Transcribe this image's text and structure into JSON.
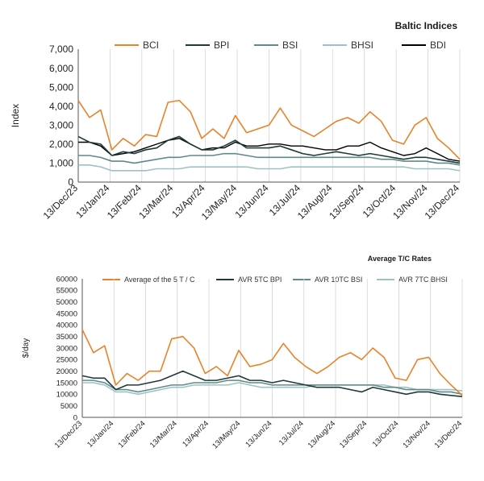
{
  "chart_data": [
    {
      "type": "line",
      "title": "Baltic Indices",
      "ylabel": "Index",
      "ylim": [
        0,
        7000
      ],
      "yticks": [
        "7,000",
        "6,000",
        "5,000",
        "4,000",
        "3,000",
        "2,000",
        "1,000",
        "0"
      ],
      "xticks": [
        "13/Dec/23",
        "13/Jan/24",
        "13/Feb/24",
        "13/Mar/24",
        "13/Apr/24",
        "13/May/24",
        "13/Jun/24",
        "13/Jul/24",
        "13/Aug/24",
        "13/Sep/24",
        "13/Oct/24",
        "13/Nov/24",
        "13/Dec/24"
      ],
      "grid": "vertical",
      "legend": "top",
      "series": [
        {
          "name": "BCI",
          "color": "#e8832a",
          "width": 1.6,
          "values": [
            4300,
            3400,
            3800,
            1700,
            2300,
            1900,
            2500,
            2400,
            4200,
            4300,
            3700,
            2300,
            2800,
            2300,
            3500,
            2600,
            2800,
            3000,
            3900,
            3000,
            2700,
            2400,
            2800,
            3200,
            3400,
            3100,
            3700,
            3200,
            2200,
            2000,
            3000,
            3400,
            2300,
            1800,
            1200
          ]
        },
        {
          "name": "BPI",
          "color": "#1f3a3a",
          "width": 1.6,
          "values": [
            2400,
            2100,
            2000,
            1400,
            1600,
            1500,
            1700,
            1800,
            2200,
            2400,
            2000,
            1700,
            1700,
            1900,
            2200,
            1800,
            1800,
            1800,
            1900,
            1700,
            1500,
            1400,
            1500,
            1600,
            1500,
            1400,
            1500,
            1400,
            1300,
            1200,
            1300,
            1300,
            1200,
            1100,
            1000
          ]
        },
        {
          "name": "BSI",
          "color": "#5e8a8a",
          "width": 1.6,
          "values": [
            1400,
            1400,
            1300,
            1100,
            1100,
            1000,
            1100,
            1200,
            1300,
            1300,
            1400,
            1400,
            1400,
            1500,
            1500,
            1400,
            1300,
            1300,
            1300,
            1300,
            1300,
            1300,
            1300,
            1300,
            1300,
            1300,
            1300,
            1200,
            1200,
            1100,
            1100,
            1100,
            1000,
            1000,
            900
          ]
        },
        {
          "name": "BHSI",
          "color": "#9cc3c3",
          "width": 1.6,
          "values": [
            900,
            900,
            800,
            600,
            600,
            600,
            600,
            700,
            700,
            700,
            800,
            800,
            800,
            800,
            800,
            800,
            700,
            700,
            700,
            800,
            800,
            800,
            800,
            800,
            800,
            800,
            800,
            800,
            800,
            800,
            700,
            700,
            700,
            700,
            600
          ]
        },
        {
          "name": "BDI",
          "color": "#000000",
          "width": 1.4,
          "values": [
            2100,
            2100,
            1900,
            1400,
            1500,
            1600,
            1800,
            2000,
            2200,
            2300,
            2000,
            1700,
            1800,
            1800,
            2100,
            1900,
            1900,
            2000,
            2000,
            1900,
            1900,
            1800,
            1700,
            1700,
            1900,
            1900,
            2100,
            1800,
            1600,
            1400,
            1500,
            1800,
            1500,
            1200,
            1100
          ]
        }
      ]
    },
    {
      "type": "line",
      "title": "Average T/C Rates",
      "ylabel": "$/day",
      "ylim": [
        0,
        60000
      ],
      "yticks": [
        "60000",
        "55000",
        "50000",
        "45000",
        "40000",
        "35000",
        "30000",
        "25000",
        "20000",
        "15000",
        "10000",
        "5000",
        "0"
      ],
      "xticks": [
        "13/Dec/23",
        "13/Jan/24",
        "13/Feb/24",
        "13/Mar/24",
        "13/Apr/24",
        "13/May/24",
        "13/Jun/24",
        "13/Jul/24",
        "13/Aug/24",
        "13/Sep/24",
        "13/Oct/24",
        "13/Nov/24",
        "13/Dec/24"
      ],
      "grid": "vertical",
      "legend": "top",
      "series": [
        {
          "name": "Average of the 5 T / C",
          "color": "#e8832a",
          "width": 1.6,
          "values": [
            38000,
            28000,
            31000,
            14000,
            19000,
            16000,
            20000,
            20000,
            34000,
            35000,
            30000,
            19000,
            22000,
            18000,
            29000,
            22000,
            23000,
            25000,
            32000,
            26000,
            22000,
            19000,
            22000,
            26000,
            28000,
            25000,
            30000,
            26000,
            17000,
            16000,
            25000,
            26000,
            19000,
            14000,
            9500
          ]
        },
        {
          "name": "AVR 5TC BPI",
          "color": "#1f3a3a",
          "width": 1.6,
          "values": [
            18000,
            17000,
            17000,
            12000,
            14000,
            14000,
            15000,
            16000,
            18000,
            20000,
            18000,
            16000,
            16000,
            17000,
            18000,
            16000,
            16000,
            15000,
            16000,
            15000,
            14000,
            13000,
            13000,
            13000,
            12000,
            11000,
            13000,
            12000,
            11000,
            10000,
            11000,
            11000,
            10000,
            9500,
            9000
          ]
        },
        {
          "name": "AVR 10TC BSI",
          "color": "#5e8a8a",
          "width": 1.6,
          "values": [
            16000,
            16000,
            15000,
            12000,
            12000,
            11000,
            12000,
            13000,
            14000,
            14000,
            15000,
            15000,
            15000,
            16000,
            16000,
            15000,
            15000,
            14000,
            14000,
            14000,
            14000,
            14000,
            14000,
            14000,
            14000,
            14000,
            14000,
            13000,
            13000,
            12000,
            12000,
            12000,
            11000,
            11000,
            10000
          ]
        },
        {
          "name": "AVR 7TC BHSI",
          "color": "#9cc3c3",
          "width": 1.6,
          "values": [
            15000,
            15000,
            14000,
            11000,
            11000,
            10000,
            11000,
            12000,
            13000,
            13000,
            14000,
            14000,
            14000,
            14000,
            15000,
            14000,
            13000,
            13000,
            13000,
            13000,
            13000,
            14000,
            14000,
            14000,
            14000,
            14000,
            14000,
            14000,
            13000,
            13000,
            12000,
            12000,
            12000,
            12000,
            11500
          ]
        }
      ]
    }
  ]
}
